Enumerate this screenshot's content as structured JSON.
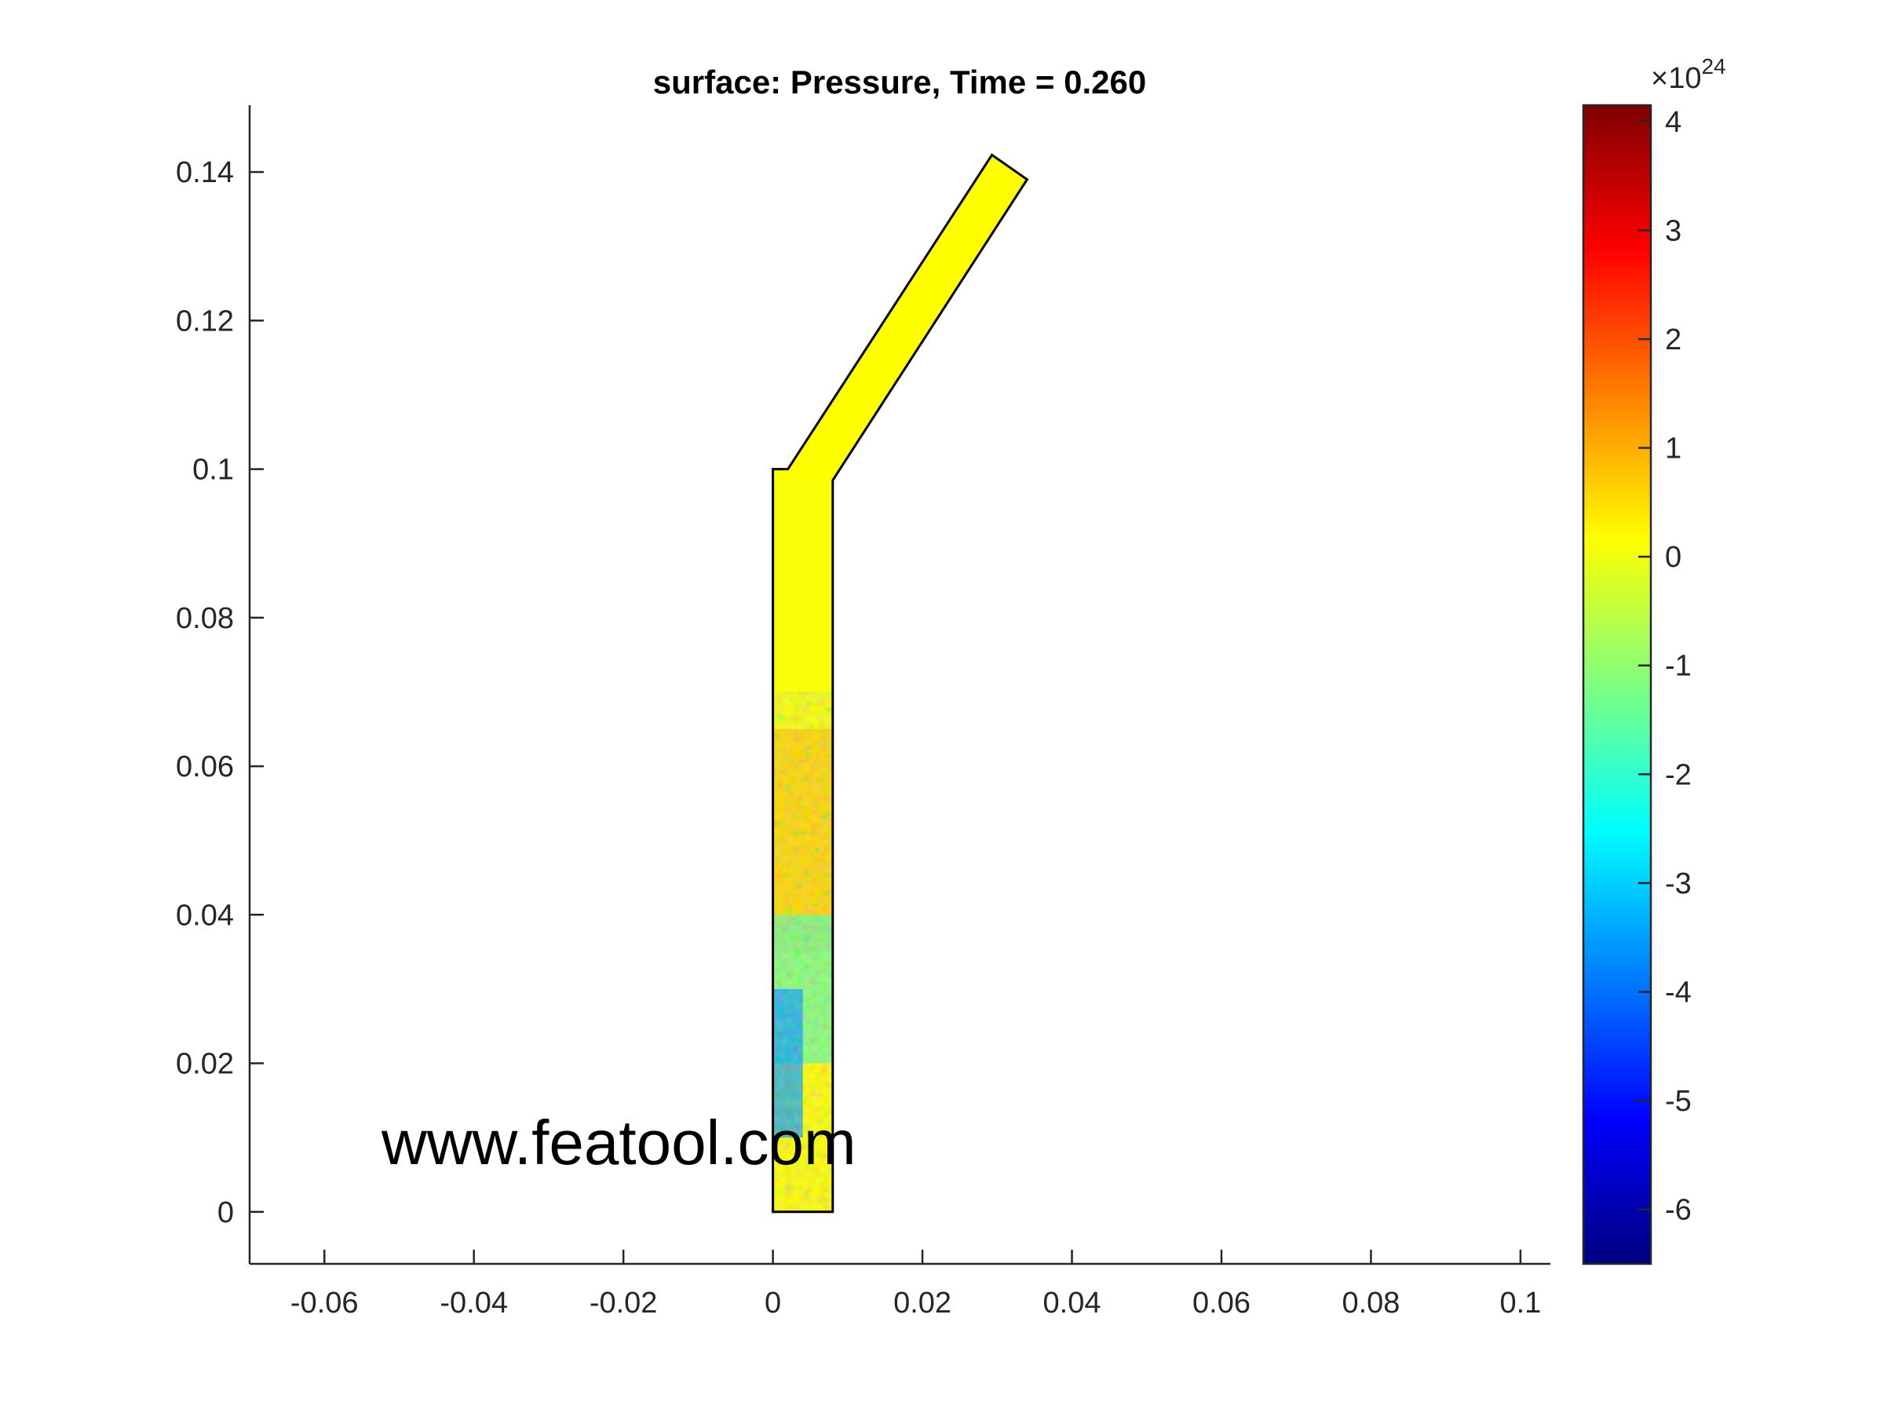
{
  "chart_data": {
    "type": "heatmap",
    "title": "surface: Pressure, Time = 0.260",
    "xlabel": "",
    "ylabel": "",
    "xlim": [
      -0.07,
      0.104
    ],
    "ylim": [
      -0.007,
      0.149
    ],
    "x_ticks": [
      -0.06,
      -0.04,
      -0.02,
      0,
      0.02,
      0.04,
      0.06,
      0.08,
      0.1
    ],
    "x_tick_labels": [
      "-0.06",
      "-0.04",
      "-0.02",
      "0",
      "0.02",
      "0.04",
      "0.06",
      "0.08",
      "0.1"
    ],
    "y_ticks": [
      0,
      0.02,
      0.04,
      0.06,
      0.08,
      0.1,
      0.12,
      0.14
    ],
    "y_tick_labels": [
      "0",
      "0.02",
      "0.04",
      "0.06",
      "0.08",
      "0.1",
      "0.12",
      "0.14"
    ],
    "geometry_outline": [
      [
        0,
        0
      ],
      [
        0.008,
        0
      ],
      [
        0.008,
        0.0985
      ],
      [
        0.034,
        0.139
      ],
      [
        0.0293,
        0.1423
      ],
      [
        0.002,
        0.1
      ],
      [
        0,
        0.1
      ]
    ],
    "colorbar": {
      "colormap": "jet",
      "range": [
        -6.5,
        4.15
      ],
      "ticks": [
        -6,
        -5,
        -4,
        -3,
        -2,
        -1,
        0,
        1,
        2,
        3,
        4
      ],
      "tick_labels": [
        "-6",
        "-5",
        "-4",
        "-3",
        "-2",
        "-1",
        "0",
        "1",
        "2",
        "3",
        "4"
      ],
      "exponent_prefix": "×10",
      "exponent_power": "24"
    },
    "field_regions": [
      {
        "x": [
          0,
          0.008
        ],
        "y": [
          0.06,
          0.0985
        ],
        "value": 0.05
      },
      {
        "x": [
          0,
          0.008
        ],
        "y": [
          0.035,
          0.065
        ],
        "value": 0.7
      },
      {
        "x": [
          0,
          0.008
        ],
        "y": [
          0.02,
          0.04
        ],
        "value": -1.5
      },
      {
        "x": [
          0,
          0.004
        ],
        "y": [
          0.01,
          0.03
        ],
        "value": -3.5
      }
    ],
    "grid": false,
    "legend": "none"
  },
  "watermark": "www.featool.com",
  "colors": {
    "domain_base": "#ffff00",
    "axes": "#262626",
    "outline": "#000000"
  }
}
